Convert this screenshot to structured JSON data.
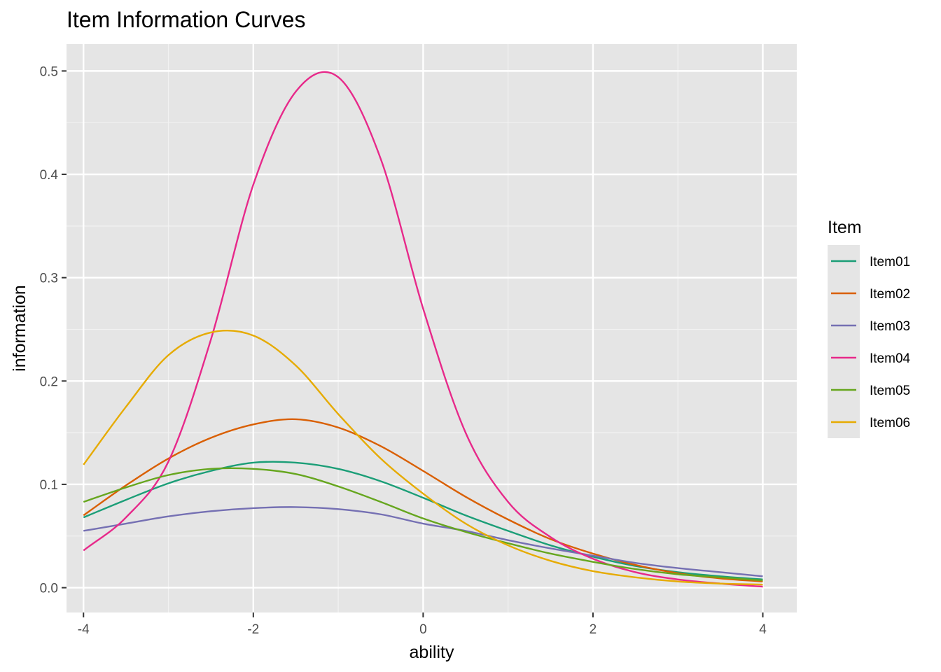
{
  "chart_data": {
    "type": "line",
    "title": "Item Information Curves",
    "xlabel": "ability",
    "ylabel": "information",
    "xlim": [
      -4.2,
      4.4
    ],
    "ylim": [
      -0.024,
      0.526
    ],
    "xticks": [
      -4,
      -2,
      0,
      2,
      4
    ],
    "xtick_labels": [
      "-4",
      "-2",
      "0",
      "2",
      "4"
    ],
    "yticks": [
      0.0,
      0.1,
      0.2,
      0.3,
      0.4,
      0.5
    ],
    "ytick_labels": [
      "0.0",
      "0.1",
      "0.2",
      "0.3",
      "0.4",
      "0.5"
    ],
    "grid": true,
    "legend_title": "Item",
    "legend_position": "right",
    "x": [
      -4,
      -3.5,
      -3,
      -2.5,
      -2,
      -1.5,
      -1,
      -0.5,
      0,
      0.5,
      1,
      1.5,
      2,
      2.5,
      3,
      3.5,
      4
    ],
    "series": [
      {
        "name": "Item01",
        "color": "#1b9e77",
        "values": [
          0.068,
          0.085,
          0.101,
          0.113,
          0.121,
          0.121,
          0.115,
          0.103,
          0.087,
          0.07,
          0.055,
          0.041,
          0.03,
          0.021,
          0.015,
          0.011,
          0.008
        ]
      },
      {
        "name": "Item02",
        "color": "#d95f02",
        "values": [
          0.07,
          0.099,
          0.125,
          0.145,
          0.158,
          0.163,
          0.155,
          0.137,
          0.113,
          0.088,
          0.066,
          0.047,
          0.033,
          0.022,
          0.014,
          0.009,
          0.006
        ]
      },
      {
        "name": "Item03",
        "color": "#7570b3",
        "values": [
          0.055,
          0.062,
          0.069,
          0.074,
          0.077,
          0.078,
          0.076,
          0.071,
          0.062,
          0.055,
          0.046,
          0.038,
          0.031,
          0.024,
          0.019,
          0.015,
          0.011
        ]
      },
      {
        "name": "Item04",
        "color": "#e7298a",
        "values": [
          0.036,
          0.068,
          0.122,
          0.24,
          0.39,
          0.48,
          0.494,
          0.415,
          0.27,
          0.15,
          0.083,
          0.049,
          0.028,
          0.015,
          0.008,
          0.004,
          0.001
        ]
      },
      {
        "name": "Item05",
        "color": "#66a61e",
        "values": [
          0.083,
          0.097,
          0.109,
          0.115,
          0.115,
          0.11,
          0.098,
          0.083,
          0.067,
          0.054,
          0.043,
          0.033,
          0.025,
          0.018,
          0.013,
          0.01,
          0.007
        ]
      },
      {
        "name": "Item06",
        "color": "#e6ab02",
        "values": [
          0.119,
          0.175,
          0.225,
          0.247,
          0.244,
          0.215,
          0.168,
          0.125,
          0.091,
          0.062,
          0.041,
          0.026,
          0.016,
          0.01,
          0.006,
          0.004,
          0.003
        ]
      }
    ]
  }
}
